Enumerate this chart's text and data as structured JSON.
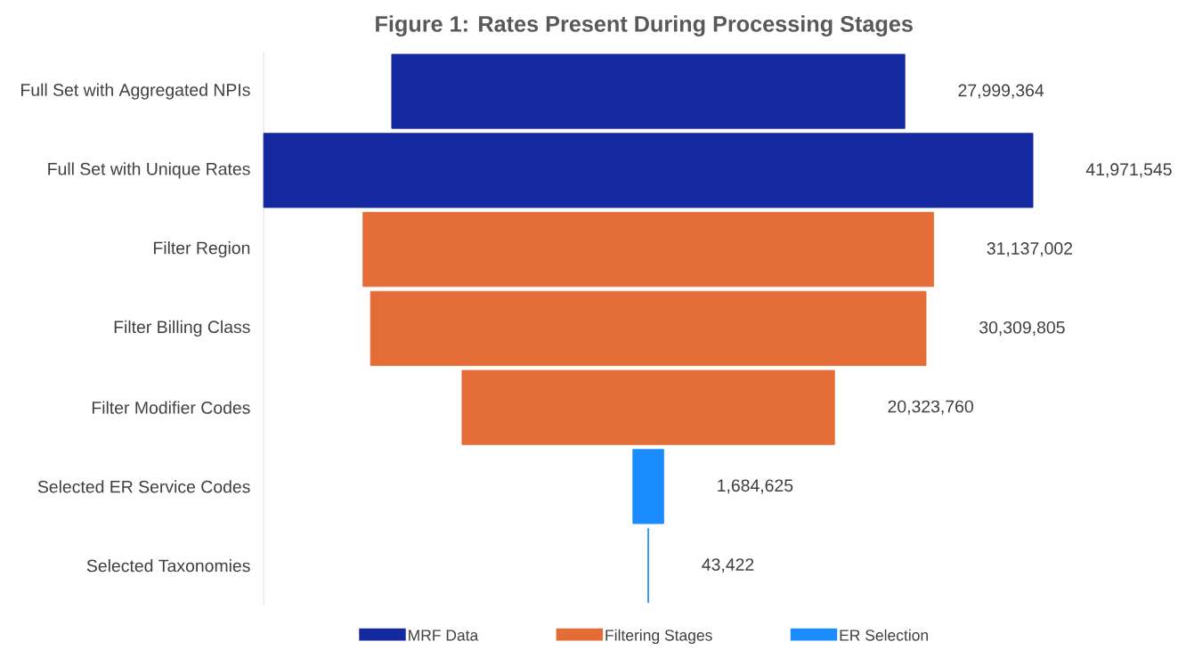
{
  "chart_data": {
    "type": "other",
    "title": "Figure 1: Rates Present During Processing Stages",
    "categories": [
      "Full Set with Aggregated NPIs",
      "Full Set with Unique Rates",
      "Filter Region",
      "Filter Billing Class",
      "Filter Modifier Codes",
      "Selected ER Service Codes",
      "Selected Taxonomies"
    ],
    "series": [
      {
        "name": "MRF Data",
        "color": "#1428a0",
        "values": [
          27999364,
          41971545,
          null,
          null,
          null,
          null,
          null
        ],
        "value_labels": [
          "27,999,364",
          "41,971,545",
          null,
          null,
          null,
          null,
          null
        ]
      },
      {
        "name": "Filtering Stages",
        "color": "#e46c37",
        "values": [
          null,
          null,
          31137002,
          30309805,
          20323760,
          null,
          null
        ],
        "value_labels": [
          null,
          null,
          "31,137,002",
          "30,309,805",
          "20,323,760",
          null,
          null
        ]
      },
      {
        "name": "ER Selection",
        "color": "#1a8cff",
        "values": [
          null,
          null,
          null,
          null,
          null,
          1684625,
          43422
        ],
        "value_labels": [
          null,
          null,
          null,
          null,
          null,
          "1,684,625",
          "43,422"
        ]
      }
    ],
    "legend": "bottom"
  }
}
